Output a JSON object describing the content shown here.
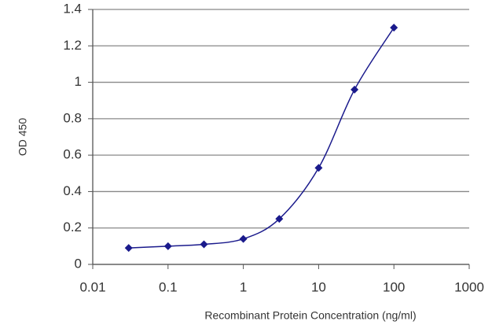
{
  "chart_data": {
    "type": "line",
    "ylabel": "OD 450",
    "xlabel": "Recombinant Protein Concentration (ng/ml)",
    "x": [
      0.03,
      0.1,
      0.3,
      1,
      3,
      10,
      30,
      100
    ],
    "series": [
      {
        "color": "#1a1a8c",
        "values": [
          0.09,
          0.1,
          0.11,
          0.14,
          0.25,
          0.53,
          0.96,
          1.3
        ]
      }
    ],
    "xscale": "log",
    "xlim": [
      0.01,
      1000
    ],
    "xticks": [
      0.01,
      0.1,
      1,
      10,
      100,
      1000
    ],
    "ylim": [
      0,
      1.4
    ],
    "yticks": [
      0,
      0.2,
      0.4,
      0.6,
      0.8,
      1,
      1.2,
      1.4
    ],
    "grid": true,
    "smooth": true,
    "marker": "diamond"
  }
}
